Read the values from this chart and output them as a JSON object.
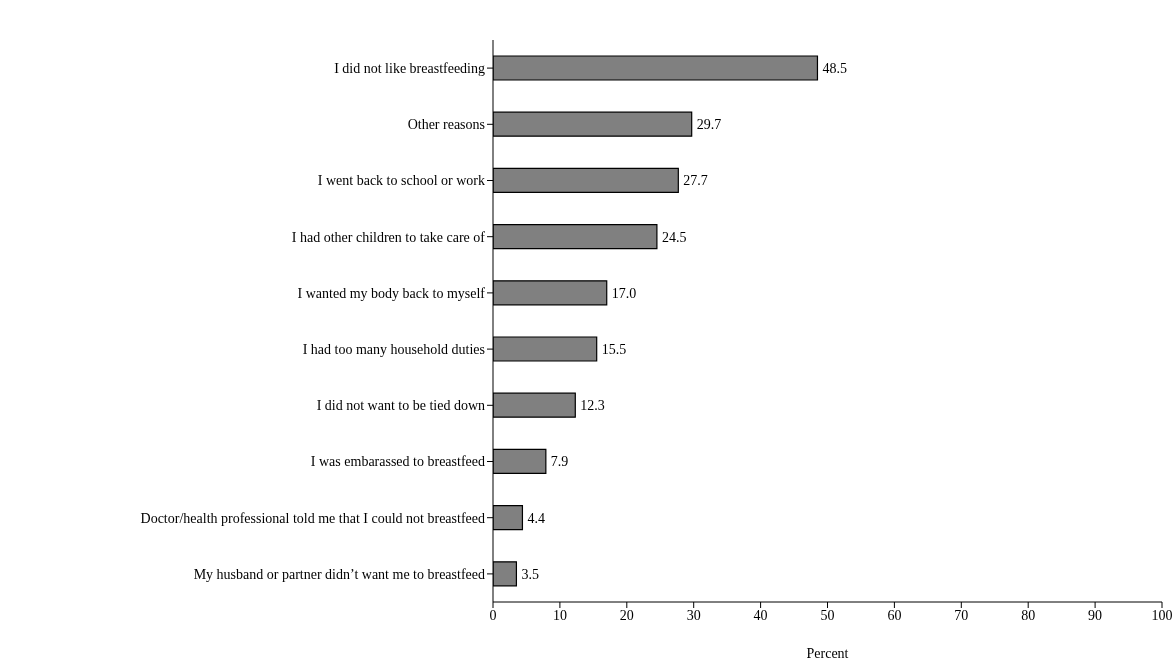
{
  "chart_data": {
    "type": "bar",
    "orientation": "horizontal",
    "xlabel": "Percent",
    "categories": [
      "I did not like breastfeeding",
      "Other reasons",
      "I went back to school or work",
      "I had other children to take care of",
      "I wanted my body back to myself",
      "I had too many household duties",
      "I did not want to be tied down",
      "I was embarassed to breastfeed",
      "Doctor/health professional told me that I could not breastfeed",
      "My husband or partner didn’t want me to breastfeed"
    ],
    "values": [
      48.5,
      29.7,
      27.7,
      24.5,
      17.0,
      15.5,
      12.3,
      7.9,
      4.4,
      3.5
    ],
    "value_labels": [
      "48.5",
      "29.7",
      "27.7",
      "24.5",
      "17.0",
      "15.5",
      "12.3",
      "7.9",
      "4.4",
      "3.5"
    ],
    "color": "#808080",
    "xlim": [
      0,
      100
    ],
    "xticks": [
      0,
      10,
      20,
      30,
      40,
      50,
      60,
      70,
      80,
      90,
      100
    ],
    "grid": false,
    "legend": false
  }
}
